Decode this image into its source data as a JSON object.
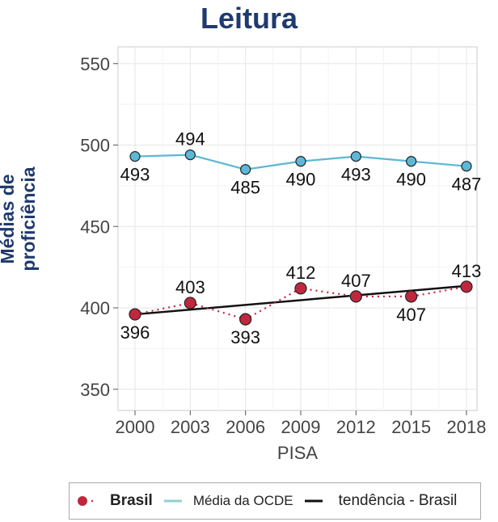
{
  "chart_data": {
    "type": "line",
    "title": "Leitura",
    "xlabel": "PISA",
    "ylabel": "Médias de proficiência",
    "x": [
      2000,
      2003,
      2006,
      2009,
      2012,
      2015,
      2018
    ],
    "xticks": [
      "2000",
      "2003",
      "2006",
      "2009",
      "2012",
      "2015",
      "2018"
    ],
    "yticks": [
      "350",
      "400",
      "450",
      "500",
      "550"
    ],
    "ylim": [
      345,
      560
    ],
    "grid": true,
    "legend_position": "bottom",
    "series": [
      {
        "name": "Brasil",
        "values": [
          396,
          403,
          393,
          412,
          407,
          407,
          413
        ],
        "color": "#c0273d",
        "style": "dotted-with-markers",
        "label_pos": [
          "below",
          "above",
          "below",
          "above",
          "above",
          "below",
          "above"
        ]
      },
      {
        "name": "Média da OCDE",
        "values": [
          493,
          494,
          485,
          490,
          493,
          490,
          487
        ],
        "color": "#5bb8d6",
        "style": "solid-with-markers",
        "label_pos": [
          "below",
          "above",
          "below",
          "below",
          "below",
          "below",
          "below"
        ]
      },
      {
        "name": "tendência - Brasil",
        "values": [
          396,
          413.5
        ],
        "x": [
          2000,
          2018
        ],
        "color": "#111111",
        "style": "solid"
      }
    ]
  }
}
